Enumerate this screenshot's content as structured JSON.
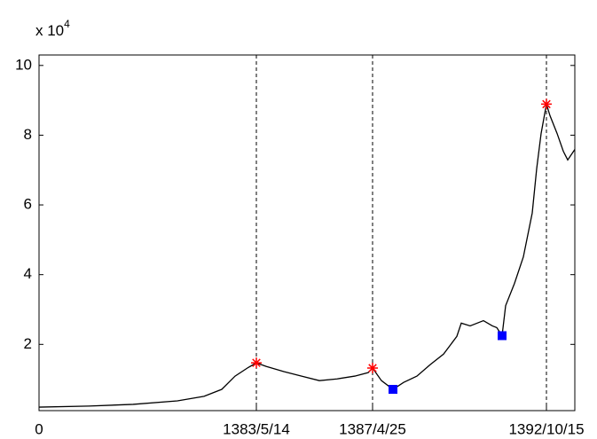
{
  "chart_data": {
    "type": "line",
    "y_multiplier": {
      "base": "x 10",
      "exponent": "4"
    },
    "x": [
      0,
      140,
      265,
      390,
      465,
      515,
      552.5,
      590,
      612.5,
      640,
      690,
      740,
      790,
      840,
      890,
      927.5,
      940,
      965,
      997.5,
      1027.5,
      1065,
      1102.5,
      1140,
      1177.5,
      1190,
      1215,
      1252.5,
      1277.5,
      1290,
      1305,
      1315,
      1340,
      1365,
      1390,
      1402.5,
      1415,
      1430,
      1440,
      1460,
      1477.5,
      1490,
      1510
    ],
    "series": [
      {
        "color": "#000000",
        "values": [
          0.2,
          0.23,
          0.28,
          0.38,
          0.51,
          0.71,
          1.09,
          1.34,
          1.47,
          1.37,
          1.22,
          1.09,
          0.96,
          1.01,
          1.09,
          1.19,
          1.32,
          0.96,
          0.71,
          0.91,
          1.09,
          1.42,
          1.72,
          2.23,
          2.61,
          2.53,
          2.68,
          2.53,
          2.48,
          2.25,
          3.11,
          3.75,
          4.51,
          5.77,
          7.04,
          8.05,
          8.89,
          8.56,
          8.05,
          7.54,
          7.29,
          7.59
        ]
      }
    ],
    "markers": [
      {
        "marker": "star",
        "color": "#ff0000",
        "x": [
          612.5,
          940,
          1430
        ],
        "values": [
          1.47,
          1.32,
          8.89
        ]
      },
      {
        "marker": "square",
        "color": "#0000ff",
        "x": [
          997.5,
          1305
        ],
        "values": [
          0.71,
          2.25
        ]
      }
    ],
    "xlim": [
      0,
      1510
    ],
    "ylim": [
      0.1,
      10.3
    ],
    "xticks": [
      0,
      {
        "value": 612.5,
        "label": "1383/5/14"
      },
      {
        "value": 940,
        "label": "1387/4/25"
      },
      {
        "value": 1430,
        "label": "1392/10/15"
      }
    ],
    "yticks": [
      2,
      4,
      6,
      8,
      10
    ],
    "dashed_xtick_lines": true
  }
}
